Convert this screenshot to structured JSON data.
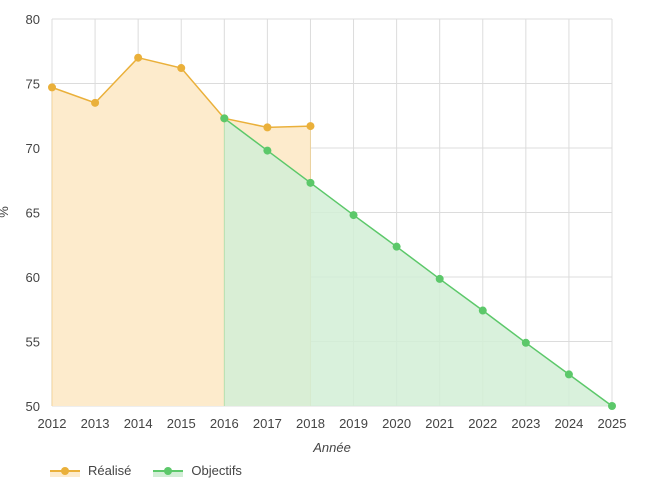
{
  "chart_data": {
    "type": "line",
    "xlabel": "Année",
    "ylabel": "%",
    "ylim": [
      50,
      80
    ],
    "yticks": [
      50,
      55,
      60,
      65,
      70,
      75,
      80
    ],
    "x": [
      2012,
      2013,
      2014,
      2015,
      2016,
      2017,
      2018,
      2019,
      2020,
      2021,
      2022,
      2023,
      2024,
      2025
    ],
    "grid": true,
    "legend_position": "bottom-left",
    "series": [
      {
        "name": "Réalisé",
        "color": "#eab03a",
        "fill": "#fdebcc",
        "points": [
          [
            2012,
            74.7
          ],
          [
            2013,
            73.5
          ],
          [
            2014,
            77.0
          ],
          [
            2015,
            76.2
          ],
          [
            2016,
            72.3
          ],
          [
            2017,
            71.6
          ],
          [
            2018,
            71.7
          ]
        ]
      },
      {
        "name": "Objectifs",
        "color": "#5cc86a",
        "fill": "#d2eed6",
        "points": [
          [
            2016,
            72.3
          ],
          [
            2017,
            69.8
          ],
          [
            2018,
            67.3
          ],
          [
            2019,
            64.8
          ],
          [
            2020,
            62.35
          ],
          [
            2021,
            59.85
          ],
          [
            2022,
            57.4
          ],
          [
            2023,
            54.9
          ],
          [
            2024,
            52.45
          ],
          [
            2025,
            50.0
          ]
        ]
      }
    ]
  }
}
